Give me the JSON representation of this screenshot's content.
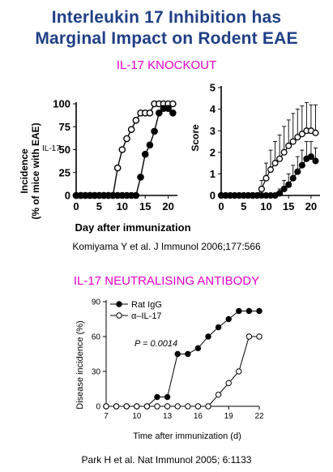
{
  "header": {
    "title_line1": "Interleukin 17 Inhibition has",
    "title_line2": "Marginal Impact on Rodent EAE"
  },
  "sections": {
    "knockout_label": "IL-17 KNOCKOUT",
    "antibody_label": "IL-17 NEUTRALISING  ANTIBODY"
  },
  "citations": {
    "top": "Komiyama Y et al. J Immunol 2006;177:566",
    "bottom": "Park H et al. Nat Immunol  2005; 6:1133"
  },
  "stray_text": "IL-17",
  "colors": {
    "title": "#1f3f86",
    "section_label": "#e600c8"
  },
  "chart_data": [
    {
      "type": "line",
      "panel": "incidence",
      "ylabel_lines": [
        "Incidence",
        "(% of mice with EAE)"
      ],
      "xlabel": "Day after immunization",
      "xlim": [
        0,
        22
      ],
      "ylim": [
        0,
        100
      ],
      "x_ticks": [
        0,
        5,
        10,
        15,
        20
      ],
      "y_ticks": [
        0,
        25,
        50,
        75,
        100
      ],
      "series": [
        {
          "marker": "open-circle",
          "x": [
            0,
            1,
            2,
            3,
            4,
            5,
            6,
            7,
            8,
            9,
            10,
            11,
            12,
            13,
            14,
            15,
            16,
            17,
            18,
            19,
            20,
            21
          ],
          "values": [
            0,
            0,
            0,
            0,
            0,
            0,
            0,
            0,
            0,
            30,
            50,
            62,
            72,
            82,
            90,
            90,
            90,
            100,
            100,
            100,
            100,
            100
          ]
        },
        {
          "marker": "filled-circle",
          "x": [
            0,
            1,
            2,
            3,
            4,
            5,
            6,
            7,
            8,
            9,
            10,
            11,
            12,
            13,
            14,
            15,
            16,
            17,
            18,
            19,
            20,
            21
          ],
          "values": [
            0,
            0,
            0,
            0,
            0,
            0,
            0,
            0,
            0,
            0,
            0,
            0,
            0,
            0,
            20,
            45,
            55,
            70,
            90,
            95,
            95,
            90
          ]
        }
      ]
    },
    {
      "type": "line",
      "panel": "score",
      "ylabel": "Score",
      "xlim": [
        0,
        22
      ],
      "ylim": [
        0,
        5
      ],
      "x_ticks": [
        0,
        5,
        10,
        15,
        20
      ],
      "y_ticks": [
        0,
        1,
        2,
        3,
        4,
        5
      ],
      "error_bars": true,
      "series": [
        {
          "marker": "open-circle",
          "x": [
            0,
            1,
            2,
            3,
            4,
            5,
            6,
            7,
            8,
            9,
            10,
            11,
            12,
            13,
            14,
            15,
            16,
            17,
            18,
            19,
            20,
            21
          ],
          "values": [
            0,
            0,
            0,
            0,
            0,
            0,
            0,
            0,
            0,
            0.3,
            0.8,
            1.2,
            1.5,
            1.7,
            2.0,
            2.3,
            2.5,
            2.7,
            2.85,
            3.0,
            3.0,
            2.9
          ],
          "errors": [
            0,
            0,
            0,
            0,
            0,
            0,
            0,
            0,
            0,
            0.4,
            0.7,
            0.9,
            1.0,
            1.1,
            1.2,
            1.2,
            1.3,
            1.3,
            1.3,
            1.3,
            1.2,
            1.3
          ]
        },
        {
          "marker": "filled-circle",
          "x": [
            0,
            1,
            2,
            3,
            4,
            5,
            6,
            7,
            8,
            9,
            10,
            11,
            12,
            13,
            14,
            15,
            16,
            17,
            18,
            19,
            20,
            21
          ],
          "values": [
            0,
            0,
            0,
            0,
            0,
            0,
            0,
            0,
            0,
            0,
            0,
            0,
            0,
            0.1,
            0.3,
            0.5,
            0.8,
            1.1,
            1.4,
            1.7,
            1.8,
            1.6
          ],
          "errors": [
            0,
            0,
            0,
            0,
            0,
            0,
            0,
            0,
            0,
            0,
            0,
            0,
            0,
            0.2,
            0.4,
            0.5,
            0.6,
            0.7,
            0.7,
            0.8,
            0.7,
            0.6
          ]
        }
      ]
    },
    {
      "type": "line",
      "panel": "antibody",
      "ylabel": "Disease incidence (%)",
      "xlabel": "Time after immunization (d)",
      "xlim": [
        7,
        22
      ],
      "ylim": [
        0,
        90
      ],
      "x_ticks": [
        7,
        10,
        13,
        16,
        19,
        22
      ],
      "y_ticks": [
        0,
        30,
        60,
        90
      ],
      "annotation": "P = 0.0014",
      "series": [
        {
          "name": "Rat IgG",
          "marker": "filled-circle",
          "x": [
            7,
            8,
            9,
            10,
            11,
            12,
            13,
            14,
            15,
            16,
            17,
            18,
            19,
            20,
            21,
            22
          ],
          "values": [
            0,
            0,
            0,
            0,
            0,
            8,
            8,
            45,
            45,
            50,
            60,
            68,
            75,
            82,
            82,
            82
          ]
        },
        {
          "name": "α–IL-17",
          "marker": "open-circle",
          "x": [
            7,
            8,
            9,
            10,
            11,
            12,
            13,
            14,
            15,
            16,
            17,
            18,
            19,
            20,
            21,
            22
          ],
          "values": [
            0,
            0,
            0,
            0,
            0,
            0,
            0,
            0,
            0,
            0,
            0,
            10,
            20,
            30,
            60,
            60
          ]
        }
      ]
    }
  ]
}
